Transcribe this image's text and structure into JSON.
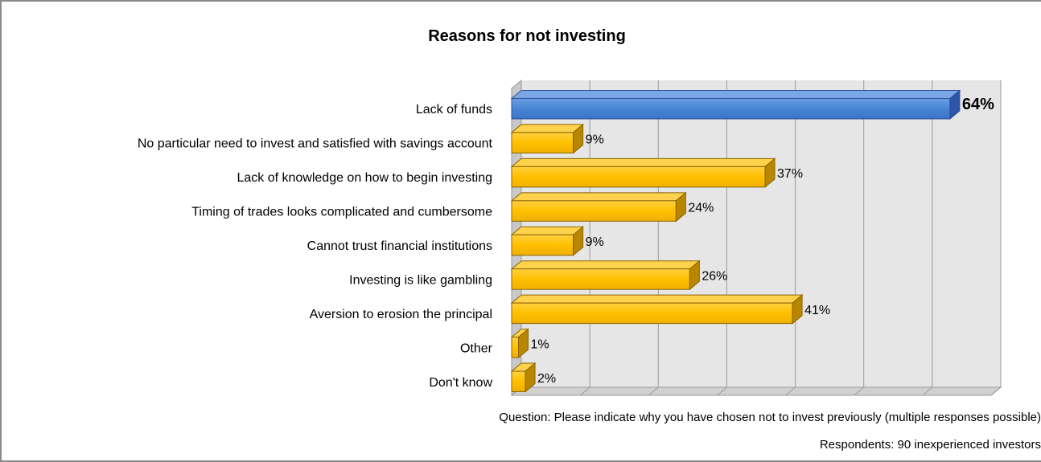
{
  "chart_data": {
    "type": "bar",
    "orientation": "horizontal",
    "title": "Reasons for not investing",
    "categories": [
      "Lack of funds",
      "No particular need to invest and satisfied with savings account",
      "Lack of knowledge on how to begin investing",
      "Timing of trades looks complicated and cumbersome",
      "Cannot trust financial institutions",
      "Investing is like gambling",
      "Aversion to erosion the principal",
      "Other",
      "Don't know"
    ],
    "values": [
      64,
      9,
      37,
      24,
      9,
      26,
      41,
      1,
      2
    ],
    "value_labels": [
      "64%",
      "9%",
      "37%",
      "24%",
      "9%",
      "26%",
      "41%",
      "1%",
      "2%"
    ],
    "unit": "%",
    "xlim": [
      0,
      70
    ],
    "grid": true,
    "highlight_index": 0,
    "colors": {
      "highlight": "#4a86d6",
      "default": "#ffc000"
    }
  },
  "notes": {
    "question": "Question: Please indicate why you have chosen not to invest previously (multiple responses possible)",
    "respondents": "Respondents: 90 inexperienced investors"
  }
}
